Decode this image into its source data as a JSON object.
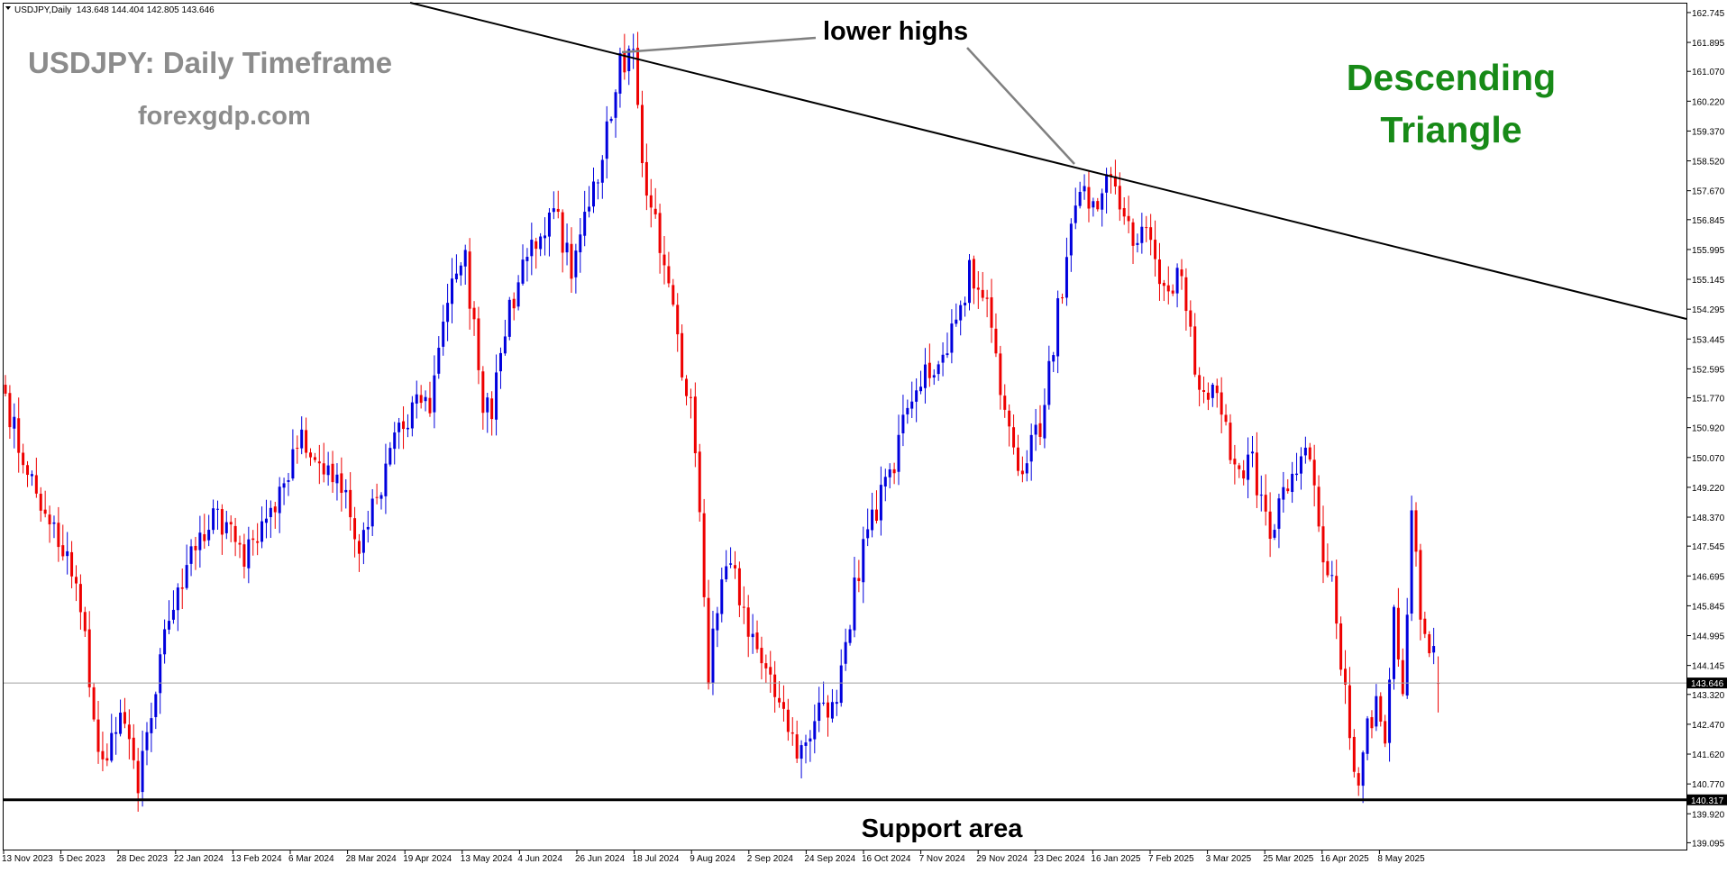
{
  "header": {
    "symbol_line": "USDJPY,Daily  143.648 144.404 142.805 143.646"
  },
  "annotations": {
    "title": "USDJPY: Daily Timeframe",
    "site": "forexgdp.com",
    "lower_highs": "lower highs",
    "pattern_line1": "Descending",
    "pattern_line2": "Triangle",
    "support": "Support area"
  },
  "colors": {
    "bull": "#0000dd",
    "bear": "#ee0000",
    "pattern_text": "#178a17",
    "watermark_text": "#8c8c8c",
    "trendline": "#000000",
    "arrow": "#808080"
  },
  "chart_data": {
    "type": "candlestick",
    "symbol": "USDJPY",
    "timeframe": "Daily",
    "ylim": [
      138.9,
      163.0
    ],
    "y_ticks": [
      "162.745",
      "161.895",
      "161.070",
      "160.220",
      "159.370",
      "158.520",
      "157.670",
      "156.845",
      "155.995",
      "155.145",
      "154.295",
      "153.445",
      "152.595",
      "151.770",
      "150.920",
      "150.070",
      "149.220",
      "148.370",
      "147.545",
      "146.695",
      "145.845",
      "144.995",
      "144.145",
      "143.320",
      "142.470",
      "141.620",
      "140.770",
      "139.920",
      "139.095"
    ],
    "x_ticks": [
      "13 Nov 2023",
      "5 Dec 2023",
      "28 Dec 2023",
      "22 Jan 2024",
      "13 Feb 2024",
      "6 Mar 2024",
      "28 Mar 2024",
      "19 Apr 2024",
      "13 May 2024",
      "4 Jun 2024",
      "26 Jun 2024",
      "18 Jul 2024",
      "9 Aug 2024",
      "2 Sep 2024",
      "24 Sep 2024",
      "16 Oct 2024",
      "7 Nov 2024",
      "29 Nov 2024",
      "23 Dec 2024",
      "16 Jan 2025",
      "7 Feb 2025",
      "3 Mar 2025",
      "25 Mar 2025",
      "16 Apr 2025",
      "8 May 2025"
    ],
    "current_price": "143.646",
    "support_price": "140.317",
    "last_bar": {
      "open": 143.648,
      "high": 144.404,
      "low": 142.805,
      "close": 143.646
    },
    "anchors": [
      {
        "bar": 0,
        "price": 151.7
      },
      {
        "bar": 8,
        "price": 148.9
      },
      {
        "bar": 16,
        "price": 146.8
      },
      {
        "bar": 22,
        "price": 141.1
      },
      {
        "bar": 26,
        "price": 142.6
      },
      {
        "bar": 30,
        "price": 140.9
      },
      {
        "bar": 36,
        "price": 144.9
      },
      {
        "bar": 42,
        "price": 147.5
      },
      {
        "bar": 48,
        "price": 148.4
      },
      {
        "bar": 54,
        "price": 147.3
      },
      {
        "bar": 60,
        "price": 148.2
      },
      {
        "bar": 66,
        "price": 150.6
      },
      {
        "bar": 70,
        "price": 150.3
      },
      {
        "bar": 76,
        "price": 149.5
      },
      {
        "bar": 80,
        "price": 147.2
      },
      {
        "bar": 83,
        "price": 148.6
      },
      {
        "bar": 88,
        "price": 150.5
      },
      {
        "bar": 92,
        "price": 151.5
      },
      {
        "bar": 96,
        "price": 151.5
      },
      {
        "bar": 100,
        "price": 154.6
      },
      {
        "bar": 104,
        "price": 155.7
      },
      {
        "bar": 108,
        "price": 151.7
      },
      {
        "bar": 110,
        "price": 151.4
      },
      {
        "bar": 114,
        "price": 154.2
      },
      {
        "bar": 118,
        "price": 156.1
      },
      {
        "bar": 124,
        "price": 157.1
      },
      {
        "bar": 128,
        "price": 155.5
      },
      {
        "bar": 134,
        "price": 158.2
      },
      {
        "bar": 139,
        "price": 161.3
      },
      {
        "bar": 142,
        "price": 161.5
      },
      {
        "bar": 144,
        "price": 158.3
      },
      {
        "bar": 148,
        "price": 156.0
      },
      {
        "bar": 152,
        "price": 153.5
      },
      {
        "bar": 155,
        "price": 151.4
      },
      {
        "bar": 158,
        "price": 146.5
      },
      {
        "bar": 159,
        "price": 144.0
      },
      {
        "bar": 162,
        "price": 146.7
      },
      {
        "bar": 164,
        "price": 147.1
      },
      {
        "bar": 168,
        "price": 145.3
      },
      {
        "bar": 172,
        "price": 144.4
      },
      {
        "bar": 176,
        "price": 142.8
      },
      {
        "bar": 180,
        "price": 141.5
      },
      {
        "bar": 184,
        "price": 143.1
      },
      {
        "bar": 188,
        "price": 143.0
      },
      {
        "bar": 192,
        "price": 146.5
      },
      {
        "bar": 196,
        "price": 148.3
      },
      {
        "bar": 200,
        "price": 149.5
      },
      {
        "bar": 206,
        "price": 152.2
      },
      {
        "bar": 210,
        "price": 152.5
      },
      {
        "bar": 214,
        "price": 153.5
      },
      {
        "bar": 218,
        "price": 155.4
      },
      {
        "bar": 222,
        "price": 154.3
      },
      {
        "bar": 226,
        "price": 151.6
      },
      {
        "bar": 230,
        "price": 149.6
      },
      {
        "bar": 234,
        "price": 151.0
      },
      {
        "bar": 238,
        "price": 154.2
      },
      {
        "bar": 242,
        "price": 157.5
      },
      {
        "bar": 246,
        "price": 157.4
      },
      {
        "bar": 250,
        "price": 158.1
      },
      {
        "bar": 254,
        "price": 156.5
      },
      {
        "bar": 258,
        "price": 156.3
      },
      {
        "bar": 262,
        "price": 154.6
      },
      {
        "bar": 266,
        "price": 155.3
      },
      {
        "bar": 270,
        "price": 152.0
      },
      {
        "bar": 274,
        "price": 152.2
      },
      {
        "bar": 278,
        "price": 149.6
      },
      {
        "bar": 282,
        "price": 149.9
      },
      {
        "bar": 286,
        "price": 148.0
      },
      {
        "bar": 290,
        "price": 149.5
      },
      {
        "bar": 294,
        "price": 150.6
      },
      {
        "bar": 298,
        "price": 147.5
      },
      {
        "bar": 300,
        "price": 146.7
      },
      {
        "bar": 302,
        "price": 144.0
      },
      {
        "bar": 304,
        "price": 142.3
      },
      {
        "bar": 306,
        "price": 140.8
      },
      {
        "bar": 308,
        "price": 142.4
      },
      {
        "bar": 310,
        "price": 143.0
      },
      {
        "bar": 312,
        "price": 142.3
      },
      {
        "bar": 314,
        "price": 145.5
      },
      {
        "bar": 316,
        "price": 143.3
      },
      {
        "bar": 318,
        "price": 148.5
      },
      {
        "bar": 320,
        "price": 145.9
      },
      {
        "bar": 322,
        "price": 144.9
      },
      {
        "bar": 324,
        "price": 143.6
      }
    ]
  }
}
